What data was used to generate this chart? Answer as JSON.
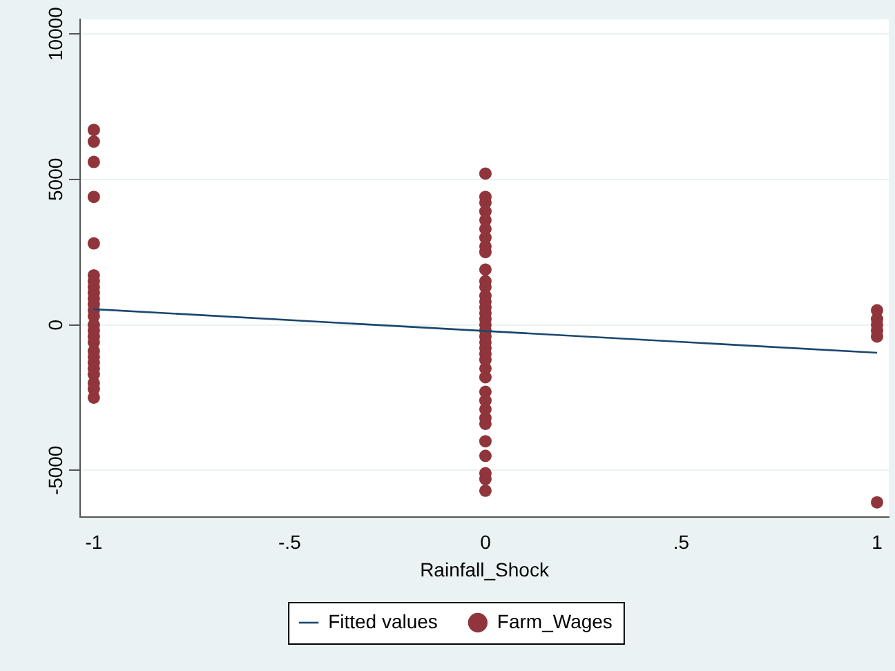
{
  "chart_data": {
    "type": "scatter",
    "xlabel": "Rainfall_Shock",
    "xlim": [
      -1.035,
      1.03
    ],
    "xticks": [
      -1,
      {
        "value": -0.5,
        "label": "-.5"
      },
      0,
      {
        "value": 0.5,
        "label": ".5"
      },
      1
    ],
    "ylim": [
      -6600,
      10500
    ],
    "yticks": [
      -5000,
      0,
      5000,
      10000
    ],
    "grid": "y",
    "legend": "bottom",
    "series": [
      {
        "name": "Fitted values",
        "type": "line",
        "marker": "none",
        "color": "#1a476f",
        "x": [
          -1,
          1
        ],
        "values": [
          540,
          -960
        ]
      },
      {
        "name": "Farm_Wages",
        "marker": "circle",
        "color": "#90353b",
        "x": [
          -1,
          -1,
          -1,
          -1,
          -1,
          -1,
          -1,
          -1,
          -1,
          -1,
          -1,
          -1,
          -1,
          -1,
          -1,
          -1,
          -1,
          -1,
          -1,
          -1,
          -1,
          -1,
          -1,
          -1,
          -1,
          0,
          0,
          0,
          0,
          0,
          0,
          0,
          0,
          0,
          0,
          0,
          0,
          0,
          0,
          0,
          0,
          0,
          0,
          0,
          0,
          0,
          0,
          0,
          0,
          0,
          0,
          0,
          0,
          0,
          0,
          0,
          0,
          0,
          0,
          0,
          0,
          1,
          1,
          1,
          1,
          1,
          1
        ],
        "values": [
          6700,
          6300,
          5600,
          4400,
          2800,
          1700,
          1500,
          1300,
          1100,
          900,
          700,
          500,
          300,
          0,
          -200,
          -400,
          -600,
          -900,
          -1100,
          -1300,
          -1500,
          -1700,
          -2000,
          -2200,
          -2500,
          5200,
          4400,
          4200,
          3900,
          3600,
          3300,
          3000,
          2700,
          2500,
          1900,
          1500,
          1300,
          1000,
          800,
          600,
          400,
          200,
          0,
          -200,
          -400,
          -600,
          -800,
          -1000,
          -1200,
          -1500,
          -1800,
          -2300,
          -2600,
          -2900,
          -3200,
          -3400,
          -4000,
          -4500,
          -5100,
          -5300,
          -5700,
          500,
          200,
          0,
          -200,
          -400,
          -6100
        ]
      }
    ]
  }
}
